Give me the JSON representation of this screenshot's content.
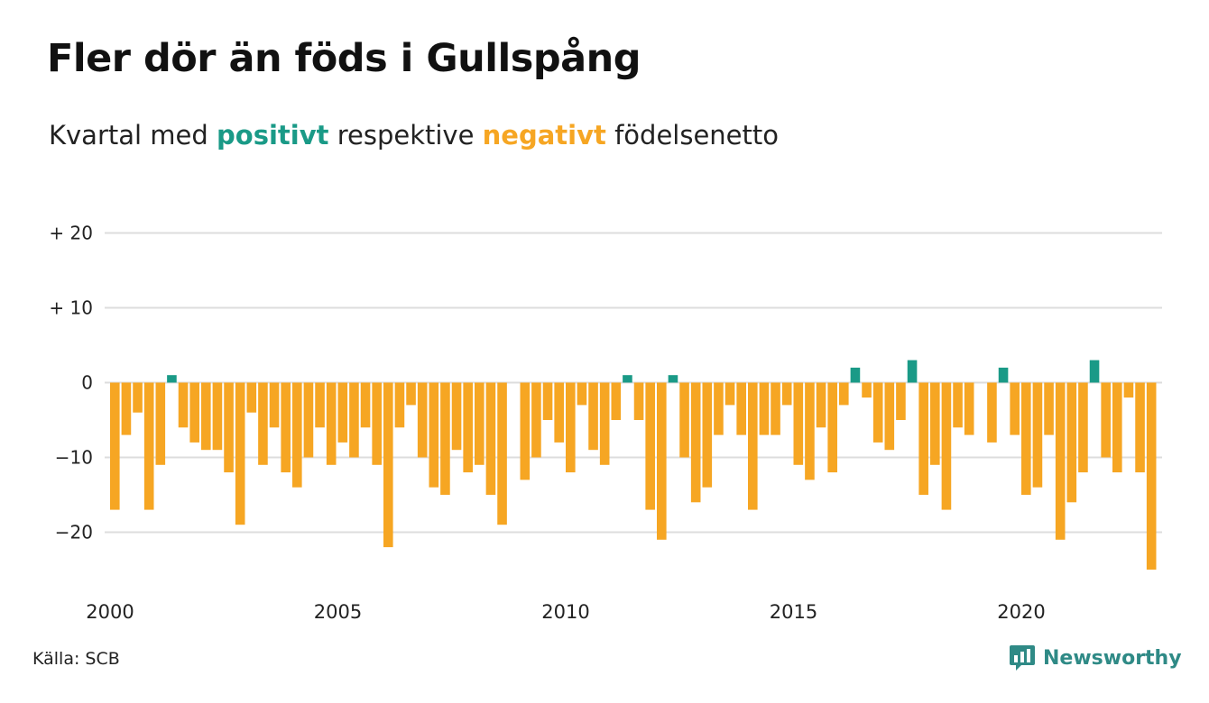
{
  "header": {
    "title": "Fler dör än föds i Gullspång",
    "subtitle_prefix": "Kvartal med",
    "subtitle_positive": "positivt",
    "subtitle_middle": "respektive",
    "subtitle_negative": "negativt",
    "subtitle_suffix": "födelsenetto"
  },
  "footer": {
    "source": "Källa: SCB",
    "brand": "Newsworthy"
  },
  "colors": {
    "positive": "#1a9a87",
    "negative": "#f6a623",
    "grid": "#dddddd",
    "brand": "#2f8a86"
  },
  "chart_data": {
    "type": "bar",
    "title": "Fler dör än föds i Gullspång",
    "subtitle": "Kvartal med positivt respektive negativt födelsenetto",
    "xlabel": "",
    "ylabel": "",
    "ylim": [
      -27,
      20
    ],
    "grid": true,
    "yticks": [
      {
        "value": 20,
        "label": "+ 20"
      },
      {
        "value": 10,
        "label": "+ 10"
      },
      {
        "value": 0,
        "label": "0"
      },
      {
        "value": -10,
        "label": "−10"
      },
      {
        "value": -20,
        "label": "−20"
      }
    ],
    "xticks": [
      {
        "value": 2000,
        "label": "2000"
      },
      {
        "value": 2005,
        "label": "2005"
      },
      {
        "value": 2010,
        "label": "2010"
      },
      {
        "value": 2015,
        "label": "2015"
      },
      {
        "value": 2020,
        "label": "2020"
      }
    ],
    "start_year": 2000,
    "values": [
      -17,
      -7,
      -4,
      -17,
      -11,
      1,
      -6,
      -8,
      -9,
      -9,
      -12,
      -19,
      -4,
      -11,
      -6,
      -12,
      -14,
      -10,
      -6,
      -11,
      -8,
      -10,
      -6,
      -11,
      -22,
      -6,
      -3,
      -10,
      -14,
      -15,
      -9,
      -12,
      -11,
      -15,
      -19,
      0,
      -13,
      -10,
      -5,
      -8,
      -12,
      -3,
      -9,
      -11,
      -5,
      1,
      -5,
      -17,
      -21,
      1,
      -10,
      -16,
      -14,
      -7,
      -3,
      -7,
      -17,
      -7,
      -7,
      -3,
      -11,
      -13,
      -6,
      -12,
      -3,
      2,
      -2,
      -8,
      -9,
      -5,
      3,
      -15,
      -11,
      -17,
      -6,
      -7,
      0,
      -8,
      2,
      -7,
      -15,
      -14,
      -7,
      -21,
      -16,
      -12,
      3,
      -10,
      -12,
      -2,
      -12,
      -25
    ]
  }
}
